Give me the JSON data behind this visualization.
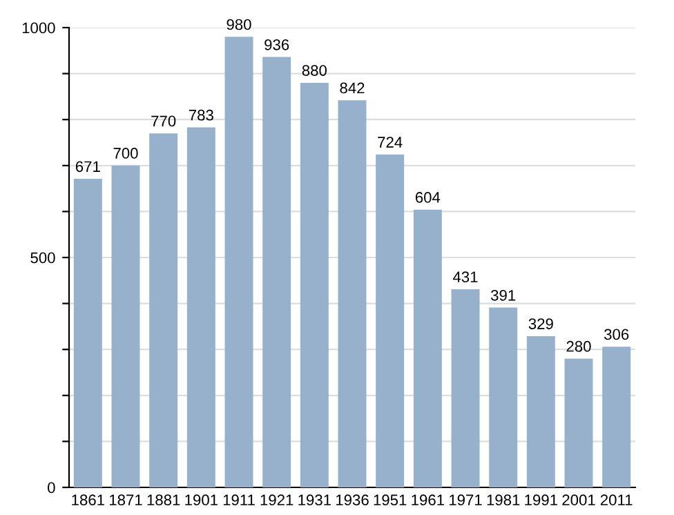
{
  "chart_data": {
    "type": "bar",
    "categories": [
      "1861",
      "1871",
      "1881",
      "1901",
      "1911",
      "1921",
      "1931",
      "1936",
      "1951",
      "1961",
      "1971",
      "1981",
      "1991",
      "2001",
      "2011"
    ],
    "values": [
      671,
      700,
      770,
      783,
      980,
      936,
      880,
      842,
      724,
      604,
      431,
      391,
      329,
      280,
      306
    ],
    "color": "#97b0cc",
    "data_labels": true,
    "grid": "y",
    "ylim": [
      0,
      1000
    ],
    "yticks": [
      0,
      {
        "value": 100,
        "label": null
      },
      {
        "value": 200,
        "label": null
      },
      {
        "value": 300,
        "label": null
      },
      {
        "value": 400,
        "label": null
      },
      500,
      {
        "value": 600,
        "label": null
      },
      {
        "value": 700,
        "label": null
      },
      {
        "value": 800,
        "label": null
      },
      {
        "value": 900,
        "label": null
      },
      1000
    ]
  }
}
